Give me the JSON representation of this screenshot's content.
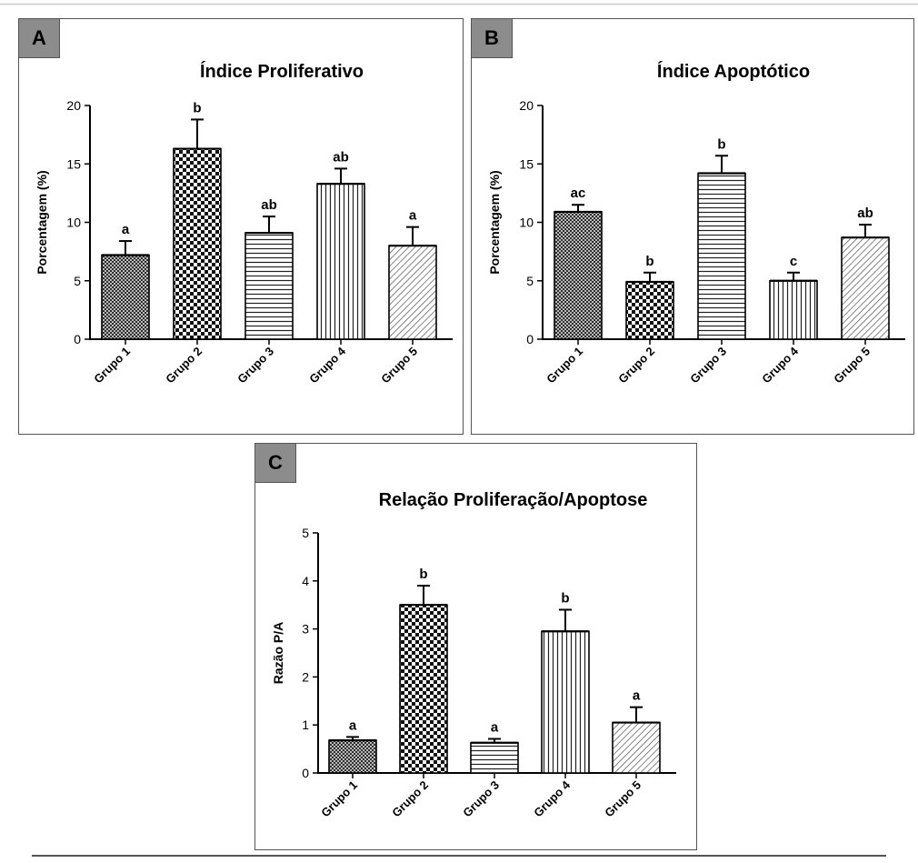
{
  "panels": [
    {
      "badge": "A"
    },
    {
      "badge": "B"
    },
    {
      "badge": "C"
    }
  ],
  "chart_data": [
    {
      "type": "bar",
      "title": "Índice Proliferativo",
      "xlabel": "",
      "ylabel": "Porcentagem (%)",
      "ylim": [
        0,
        20
      ],
      "yticks": [
        0,
        5,
        10,
        15,
        20
      ],
      "categories": [
        "Grupo 1",
        "Grupo 2",
        "Grupo 3",
        "Grupo 4",
        "Grupo 5"
      ],
      "values": [
        7.2,
        16.3,
        9.1,
        13.3,
        8.0
      ],
      "errors": [
        1.2,
        2.5,
        1.4,
        1.3,
        1.6
      ],
      "labels": [
        "a",
        "b",
        "ab",
        "ab",
        "a"
      ],
      "patterns": [
        "dots-dense",
        "checker",
        "horizontal",
        "vertical",
        "diagonal"
      ],
      "grid": false
    },
    {
      "type": "bar",
      "title": "Índice Apoptótico",
      "xlabel": "",
      "ylabel": "Porcentagem (%)",
      "ylim": [
        0,
        20
      ],
      "yticks": [
        0,
        5,
        10,
        15,
        20
      ],
      "categories": [
        "Grupo 1",
        "Grupo 2",
        "Grupo 3",
        "Grupo 4",
        "Grupo 5"
      ],
      "values": [
        10.9,
        4.9,
        14.2,
        5.0,
        8.7
      ],
      "errors": [
        0.6,
        0.8,
        1.5,
        0.7,
        1.1
      ],
      "labels": [
        "ac",
        "b",
        "b",
        "c",
        "ab"
      ],
      "patterns": [
        "dots-dense",
        "checker",
        "horizontal",
        "vertical",
        "diagonal"
      ],
      "grid": false
    },
    {
      "type": "bar",
      "title": "Relação Proliferação/Apoptose",
      "xlabel": "",
      "ylabel": "Razão P/A",
      "ylim": [
        0,
        5
      ],
      "yticks": [
        0,
        1,
        2,
        3,
        4,
        5
      ],
      "categories": [
        "Grupo 1",
        "Grupo 2",
        "Grupo 3",
        "Grupo 4",
        "Grupo 5"
      ],
      "values": [
        0.68,
        3.5,
        0.63,
        2.95,
        1.05
      ],
      "errors": [
        0.07,
        0.4,
        0.08,
        0.45,
        0.32
      ],
      "labels": [
        "a",
        "b",
        "a",
        "b",
        "a"
      ],
      "patterns": [
        "dots-dense",
        "checker",
        "horizontal",
        "vertical",
        "diagonal"
      ],
      "grid": false
    }
  ]
}
